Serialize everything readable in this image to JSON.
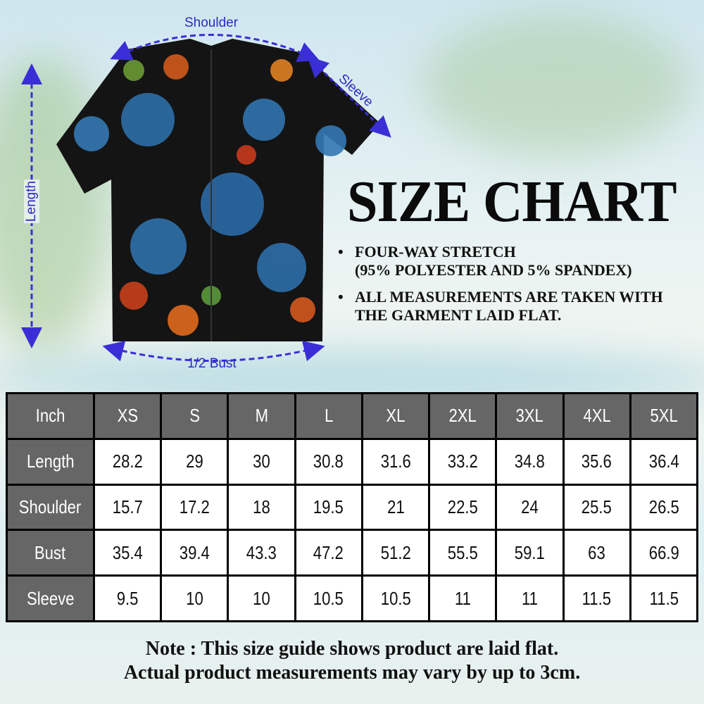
{
  "title": "SIZE CHART",
  "bullets": [
    {
      "line1": "FOUR-WAY STRETCH",
      "line2": "(95% POLYESTER AND 5% SPANDEX)"
    },
    {
      "line1": "ALL MEASUREMENTS ARE TAKEN WITH",
      "line2": "THE GARMENT LAID FLAT."
    }
  ],
  "diagram_labels": {
    "shoulder": "Shoulder",
    "sleeve": "Sleeve",
    "length": "Length",
    "bust": "1/2 Bust"
  },
  "colors": {
    "arrow": "#3a2fd6",
    "header_bg": "#666666"
  },
  "table": {
    "corner": "Inch",
    "sizes": [
      "XS",
      "S",
      "M",
      "L",
      "XL",
      "2XL",
      "3XL",
      "4XL",
      "5XL"
    ],
    "rows": [
      {
        "label": "Length",
        "values": [
          "28.2",
          "29",
          "30",
          "30.8",
          "31.6",
          "33.2",
          "34.8",
          "35.6",
          "36.4"
        ]
      },
      {
        "label": "Shoulder",
        "values": [
          "15.7",
          "17.2",
          "18",
          "19.5",
          "21",
          "22.5",
          "24",
          "25.5",
          "26.5"
        ]
      },
      {
        "label": "Bust",
        "values": [
          "35.4",
          "39.4",
          "43.3",
          "47.2",
          "51.2",
          "55.5",
          "59.1",
          "63",
          "66.9"
        ]
      },
      {
        "label": "Sleeve",
        "values": [
          "9.5",
          "10",
          "10",
          "10.5",
          "10.5",
          "11",
          "11",
          "11.5",
          "11.5"
        ]
      }
    ]
  },
  "note": {
    "line1": "Note : This size guide shows product are laid flat.",
    "line2": "Actual product measurements may vary by up to 3cm."
  }
}
